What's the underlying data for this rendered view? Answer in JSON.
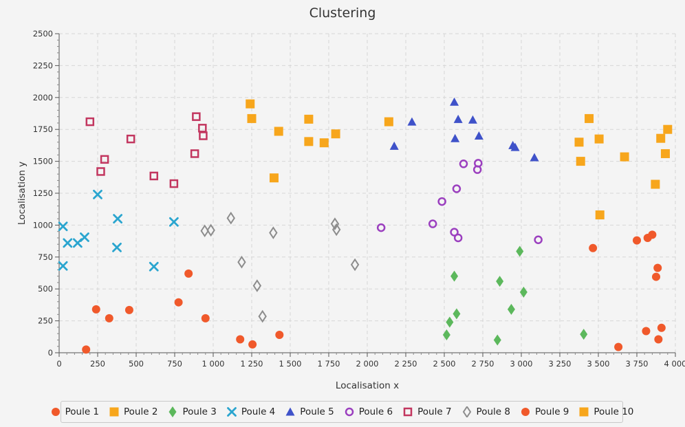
{
  "chart_data": {
    "type": "scatter",
    "title": "Clustering",
    "xlabel": "Localisation x",
    "ylabel": "Localisation y",
    "xlim": [
      0,
      4000
    ],
    "ylim": [
      0,
      2500
    ],
    "x_ticks": [
      "0",
      "250",
      "500",
      "750",
      "1 000",
      "1 250",
      "1 500",
      "1 750",
      "2 000",
      "2 250",
      "2 500",
      "2 750",
      "3 000",
      "3 250",
      "3 500",
      "3 750",
      "4 000"
    ],
    "y_ticks": [
      "0",
      "250",
      "500",
      "750",
      "1000",
      "1250",
      "1500",
      "1750",
      "2000",
      "2250",
      "2500"
    ],
    "grid": true,
    "legend_position": "bottom",
    "series": [
      {
        "name": "Poule 1",
        "marker": "circle",
        "color": "#f0592b",
        "points": [
          [
            175,
            25
          ],
          [
            240,
            340
          ],
          [
            325,
            270
          ],
          [
            455,
            335
          ],
          [
            840,
            620
          ],
          [
            775,
            395
          ],
          [
            950,
            270
          ],
          [
            1175,
            105
          ],
          [
            1255,
            65
          ],
          [
            1430,
            140
          ]
        ]
      },
      {
        "name": "Poule 2",
        "marker": "square",
        "color": "#f7a61c",
        "points": [
          [
            1240,
            1950
          ],
          [
            1250,
            1835
          ],
          [
            1395,
            1370
          ],
          [
            1425,
            1735
          ],
          [
            1620,
            1830
          ],
          [
            1620,
            1655
          ],
          [
            1720,
            1645
          ],
          [
            1795,
            1715
          ],
          [
            2140,
            1810
          ]
        ]
      },
      {
        "name": "Poule 3",
        "marker": "diamond",
        "color": "#5cb85c",
        "points": [
          [
            2515,
            140
          ],
          [
            2535,
            240
          ],
          [
            2565,
            600
          ],
          [
            2580,
            305
          ],
          [
            2845,
            100
          ],
          [
            2860,
            560
          ],
          [
            2935,
            340
          ],
          [
            2990,
            795
          ],
          [
            3015,
            475
          ],
          [
            3405,
            145
          ]
        ]
      },
      {
        "name": "Poule 4",
        "marker": "cross",
        "color": "#2aa5cf",
        "points": [
          [
            25,
            990
          ],
          [
            25,
            680
          ],
          [
            55,
            860
          ],
          [
            120,
            860
          ],
          [
            165,
            905
          ],
          [
            250,
            1240
          ],
          [
            380,
            1050
          ],
          [
            375,
            825
          ],
          [
            615,
            675
          ],
          [
            745,
            1025
          ]
        ]
      },
      {
        "name": "Poule 5",
        "marker": "triangle",
        "color": "#3f52c9",
        "points": [
          [
            2175,
            1620
          ],
          [
            2290,
            1810
          ],
          [
            2565,
            1965
          ],
          [
            2570,
            1680
          ],
          [
            2590,
            1830
          ],
          [
            2685,
            1825
          ],
          [
            2725,
            1700
          ],
          [
            2945,
            1625
          ],
          [
            2960,
            1610
          ],
          [
            3085,
            1530
          ]
        ]
      },
      {
        "name": "Poule 6",
        "marker": "ring",
        "color": "#9b3fbf",
        "points": [
          [
            2090,
            980
          ],
          [
            2425,
            1010
          ],
          [
            2485,
            1185
          ],
          [
            2565,
            945
          ],
          [
            2580,
            1285
          ],
          [
            2590,
            900
          ],
          [
            2625,
            1480
          ],
          [
            2715,
            1435
          ],
          [
            2720,
            1485
          ],
          [
            3110,
            885
          ]
        ]
      },
      {
        "name": "Poule 7",
        "marker": "hollow-square",
        "color": "#c2365f",
        "points": [
          [
            200,
            1810
          ],
          [
            270,
            1420
          ],
          [
            295,
            1515
          ],
          [
            465,
            1675
          ],
          [
            615,
            1385
          ],
          [
            745,
            1325
          ],
          [
            880,
            1560
          ],
          [
            890,
            1850
          ],
          [
            930,
            1760
          ],
          [
            935,
            1700
          ]
        ]
      },
      {
        "name": "Poule 8",
        "marker": "hollow-diamond",
        "color": "#8c8c8c",
        "points": [
          [
            945,
            955
          ],
          [
            985,
            960
          ],
          [
            1115,
            1055
          ],
          [
            1185,
            710
          ],
          [
            1285,
            525
          ],
          [
            1320,
            285
          ],
          [
            1390,
            940
          ],
          [
            1790,
            1010
          ],
          [
            1800,
            965
          ],
          [
            1920,
            690
          ]
        ]
      },
      {
        "name": "Poule 9",
        "marker": "circle",
        "color": "#f0592b",
        "points": [
          [
            3465,
            820
          ],
          [
            3630,
            45
          ],
          [
            3750,
            880
          ],
          [
            3810,
            170
          ],
          [
            3820,
            900
          ],
          [
            3850,
            925
          ],
          [
            3875,
            595
          ],
          [
            3885,
            665
          ],
          [
            3890,
            105
          ],
          [
            3910,
            195
          ]
        ]
      },
      {
        "name": "Poule 10",
        "marker": "square",
        "color": "#f7a61c",
        "points": [
          [
            3375,
            1650
          ],
          [
            3385,
            1500
          ],
          [
            3440,
            1835
          ],
          [
            3505,
            1675
          ],
          [
            3510,
            1080
          ],
          [
            3670,
            1535
          ],
          [
            3870,
            1320
          ],
          [
            3905,
            1680
          ],
          [
            3935,
            1560
          ],
          [
            3950,
            1750
          ]
        ]
      }
    ]
  }
}
